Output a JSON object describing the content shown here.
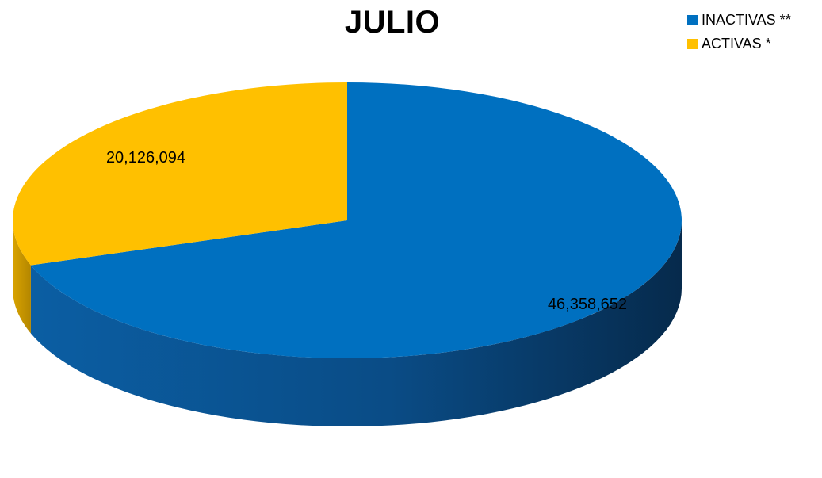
{
  "chart_data": {
    "type": "pie",
    "title": "JULIO",
    "slices": [
      {
        "label": "INACTIVAS **",
        "value": 46358652,
        "value_label": "46,358,652",
        "color": "#0070C0"
      },
      {
        "label": "ACTIVAS *",
        "value": 20126094,
        "value_label": "20,126,094",
        "color": "#FFC000"
      }
    ],
    "legend_position": "top-right",
    "style": "3d"
  }
}
